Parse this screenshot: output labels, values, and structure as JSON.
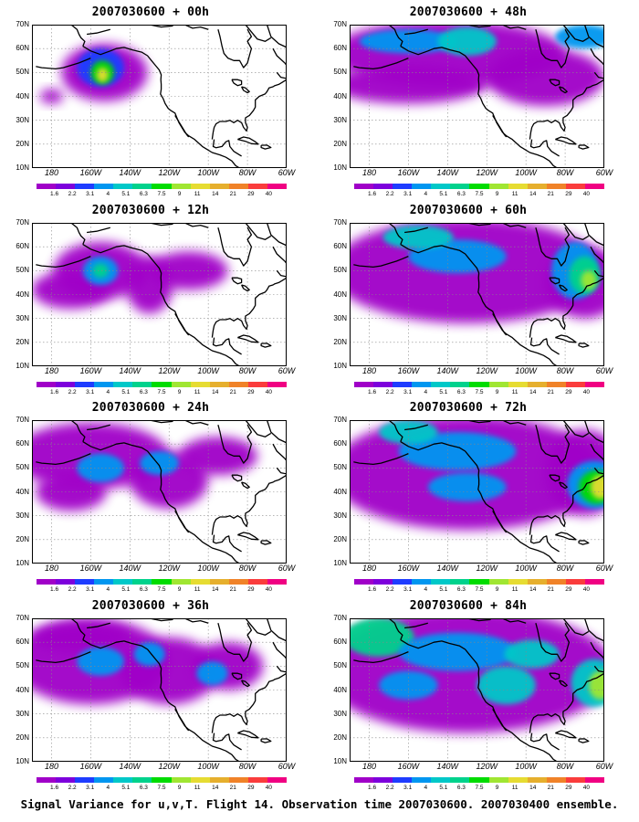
{
  "caption": "Signal Variance for u,v,T. Flight 14. Observation time 2007030600. 2007030400 ensemble.",
  "y_labels": [
    "70N",
    "60N",
    "50N",
    "40N",
    "30N",
    "20N",
    "10N"
  ],
  "x_labels": [
    "180",
    "160W",
    "140W",
    "120W",
    "100W",
    "80W",
    "60W"
  ],
  "colorbar": {
    "labels": [
      "1.6",
      "2.2",
      "3.1",
      "4",
      "5.1",
      "6.3",
      "7.5",
      "9",
      "11",
      "14",
      "21",
      "29",
      "40"
    ],
    "colors": [
      "#a000c8",
      "#7d00dc",
      "#1e3cff",
      "#0096f0",
      "#00c8c8",
      "#00d28c",
      "#00dc00",
      "#a0e632",
      "#e6dc32",
      "#e6af2d",
      "#f08228",
      "#fa3c3c",
      "#f00082"
    ]
  },
  "panels": [
    {
      "title": "2007030600 + 00h",
      "level": 0
    },
    {
      "title": "2007030600 + 48h",
      "level": 4
    },
    {
      "title": "2007030600 + 12h",
      "level": 1
    },
    {
      "title": "2007030600 + 60h",
      "level": 5
    },
    {
      "title": "2007030600 + 24h",
      "level": 2
    },
    {
      "title": "2007030600 + 72h",
      "level": 6
    },
    {
      "title": "2007030600 + 36h",
      "level": 3
    },
    {
      "title": "2007030600 + 84h",
      "level": 7
    }
  ]
}
